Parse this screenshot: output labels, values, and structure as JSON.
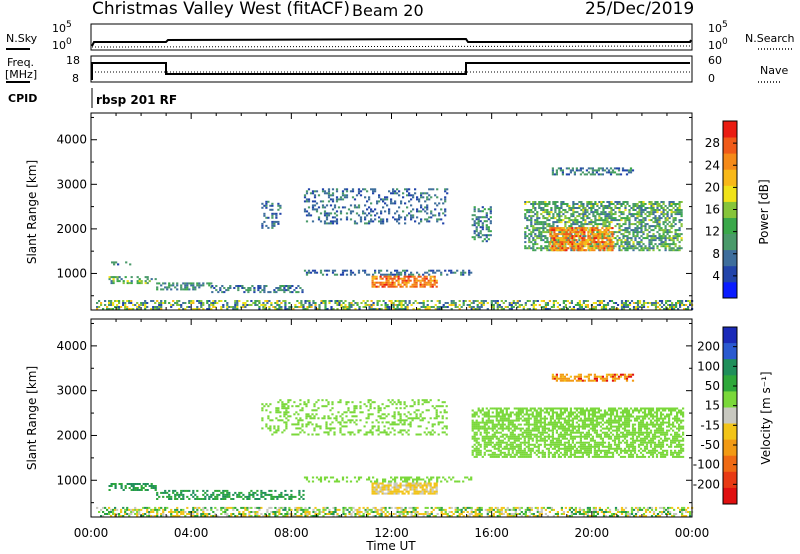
{
  "header": {
    "title": "Christmas Valley West (fitACF)",
    "beam": "Beam 20",
    "date": "25/Dec/2019"
  },
  "params": {
    "nsky_label": "N.Sky",
    "nsky_ticks": [
      "10^5",
      "10^0"
    ],
    "nsearch_label": "N.Search",
    "nsearch_ticks": [
      "10^5",
      "10^0"
    ],
    "freq_label": [
      "Freq.",
      "[MHz]"
    ],
    "freq_ticks": [
      "18",
      "8"
    ],
    "nave_label": "Nave",
    "nave_ticks": [
      "60",
      "0"
    ],
    "cpid_label": "CPID",
    "cpid_text": "rbsp 201 RF"
  },
  "colors": {
    "power": [
      "#0a1cff",
      "#2244aa",
      "#3e6e9c",
      "#4a9a6a",
      "#3aa84a",
      "#86c53a",
      "#f0e218",
      "#f8b818",
      "#f58a18",
      "#f05a18",
      "#ea1c12"
    ],
    "velocity": [
      "#1a2ab8",
      "#2a5ad0",
      "#1f8f5a",
      "#2ea83a",
      "#7ad83a",
      "#c8c8c0",
      "#f2c418",
      "#f29a14",
      "#ef6a14",
      "#e83a14",
      "#e01010"
    ]
  },
  "chart_data": [
    {
      "type": "heatmap",
      "name": "power",
      "title": "",
      "xlabel": "",
      "ylabel": "Slant Range [km]",
      "x_range_hours": [
        0,
        24
      ],
      "x_ticks": [
        "00:00",
        "04:00",
        "08:00",
        "12:00",
        "16:00",
        "20:00",
        "00:00"
      ],
      "ylim": [
        180,
        4600
      ],
      "y_ticks": [
        1000,
        2000,
        3000,
        4000
      ],
      "colorbar_label": "Power [dB]",
      "colorbar_ticks": [
        4,
        8,
        12,
        16,
        20,
        24,
        28
      ],
      "colorbar_range": [
        0,
        32
      ],
      "regions": [
        {
          "t": [
            0.2,
            24.0
          ],
          "r": [
            180,
            400
          ],
          "power": [
            4,
            22
          ],
          "density": 0.55
        },
        {
          "t": [
            0.7,
            2.6
          ],
          "r": [
            760,
            900
          ],
          "power": [
            6,
            18
          ],
          "density": 0.55
        },
        {
          "t": [
            0.8,
            1.6
          ],
          "r": [
            1180,
            1260
          ],
          "power": [
            4,
            10
          ],
          "density": 0.4
        },
        {
          "t": [
            2.6,
            4.8
          ],
          "r": [
            620,
            760
          ],
          "power": [
            6,
            14
          ],
          "density": 0.5
        },
        {
          "t": [
            4.8,
            8.5
          ],
          "r": [
            560,
            700
          ],
          "power": [
            4,
            12
          ],
          "density": 0.45
        },
        {
          "t": [
            8.5,
            15.2
          ],
          "r": [
            950,
            1080
          ],
          "power": [
            4,
            10
          ],
          "density": 0.4
        },
        {
          "t": [
            11.2,
            13.8
          ],
          "r": [
            680,
            920
          ],
          "power": [
            22,
            30
          ],
          "density": 0.8
        },
        {
          "t": [
            6.8,
            7.6
          ],
          "r": [
            2000,
            2600
          ],
          "power": [
            4,
            10
          ],
          "density": 0.35
        },
        {
          "t": [
            8.5,
            14.2
          ],
          "r": [
            2100,
            2900
          ],
          "power": [
            4,
            10
          ],
          "density": 0.3
        },
        {
          "t": [
            15.2,
            16.0
          ],
          "r": [
            1700,
            2500
          ],
          "power": [
            4,
            14
          ],
          "density": 0.4
        },
        {
          "t": [
            17.3,
            23.6
          ],
          "r": [
            1500,
            2600
          ],
          "power": [
            6,
            18
          ],
          "density": 0.6
        },
        {
          "t": [
            18.3,
            20.8
          ],
          "r": [
            1500,
            2000
          ],
          "power": [
            20,
            30
          ],
          "density": 0.75
        },
        {
          "t": [
            18.4,
            21.6
          ],
          "r": [
            3200,
            3380
          ],
          "power": [
            4,
            12
          ],
          "density": 0.55
        }
      ]
    },
    {
      "type": "heatmap",
      "name": "velocity",
      "title": "",
      "xlabel": "Time UT",
      "ylabel": "Slant Range [km]",
      "x_range_hours": [
        0,
        24
      ],
      "x_ticks": [
        "00:00",
        "04:00",
        "08:00",
        "12:00",
        "16:00",
        "20:00",
        "00:00"
      ],
      "ylim": [
        180,
        4600
      ],
      "y_ticks": [
        1000,
        2000,
        3000,
        4000
      ],
      "colorbar_label": "Velocity [m s⁻¹]",
      "colorbar_ticks": [
        200,
        100,
        50,
        15,
        -15,
        -50,
        -100,
        -200
      ],
      "regions": [
        {
          "t": [
            0.2,
            24.0
          ],
          "r": [
            180,
            400
          ],
          "velocity": [
            -100,
            60
          ],
          "density": 0.55
        },
        {
          "t": [
            0.7,
            2.6
          ],
          "r": [
            760,
            900
          ],
          "velocity": [
            20,
            90
          ],
          "density": 0.55
        },
        {
          "t": [
            2.6,
            8.5
          ],
          "r": [
            560,
            760
          ],
          "velocity": [
            15,
            80
          ],
          "density": 0.45
        },
        {
          "t": [
            11.2,
            13.8
          ],
          "r": [
            680,
            920
          ],
          "velocity": [
            -90,
            -30
          ],
          "density": 0.8
        },
        {
          "t": [
            8.5,
            15.2
          ],
          "r": [
            950,
            1080
          ],
          "velocity": [
            -14,
            14
          ],
          "density": 0.35
        },
        {
          "t": [
            6.8,
            14.2
          ],
          "r": [
            2000,
            2800
          ],
          "velocity": [
            -14,
            14
          ],
          "density": 0.3
        },
        {
          "t": [
            15.2,
            23.6
          ],
          "r": [
            1500,
            2600
          ],
          "velocity": [
            -14,
            14
          ],
          "density": 0.65
        },
        {
          "t": [
            18.4,
            21.6
          ],
          "r": [
            3200,
            3380
          ],
          "velocity": [
            -220,
            -60
          ],
          "density": 0.55
        }
      ]
    }
  ],
  "xlabel": "Time UT"
}
